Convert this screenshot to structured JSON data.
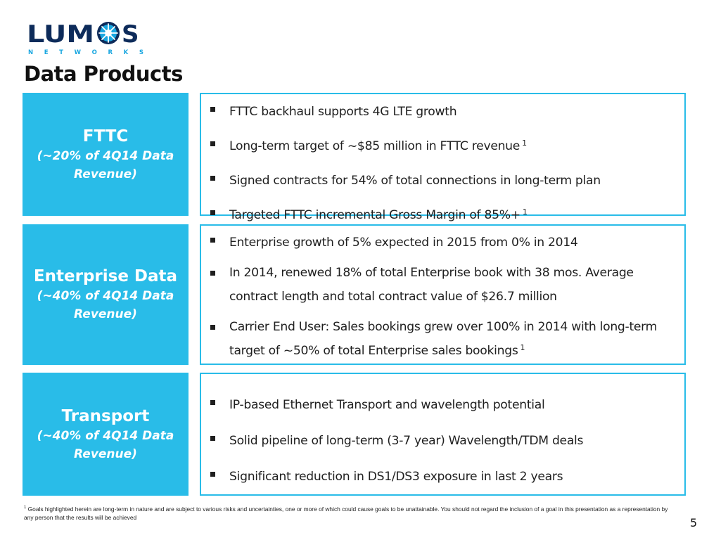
{
  "logo": {
    "word_left": "LUM",
    "word_right": "S",
    "tagline": "N E T W O R K S"
  },
  "title": "Data Products",
  "sections": [
    {
      "label": "FTTC",
      "sublabel": "(~20% of 4Q14 Data Revenue)",
      "bullets": [
        {
          "text": "FTTC backhaul supports 4G LTE growth",
          "note": ""
        },
        {
          "text": "Long-term target of ~$85 million in FTTC revenue",
          "note": "1"
        },
        {
          "text": "Signed contracts for 54% of total connections in long-term plan",
          "note": ""
        },
        {
          "text": "Targeted FTTC incremental Gross Margin of 85%+",
          "note": "1"
        }
      ]
    },
    {
      "label": "Enterprise Data",
      "sublabel": "(~40% of 4Q14 Data Revenue)",
      "bullets": [
        {
          "text": "Enterprise growth of 5% expected in 2015 from 0% in 2014",
          "note": ""
        },
        {
          "text": "In 2014, renewed 18% of total Enterprise book with 38 mos. Average contract length and total contract value of $26.7 million",
          "note": ""
        },
        {
          "text": "Carrier End User:  Sales bookings grew over 100% in 2014 with long-term target of ~50% of total Enterprise sales bookings",
          "note": "1"
        }
      ]
    },
    {
      "label": "Transport",
      "sublabel": "(~40% of 4Q14 Data Revenue)",
      "bullets": [
        {
          "text": "IP-based Ethernet Transport and wavelength potential",
          "note": ""
        },
        {
          "text": "Solid pipeline of long-term (3-7 year) Wavelength/TDM deals",
          "note": ""
        },
        {
          "text": "Significant reduction in DS1/DS3 exposure in last 2 years",
          "note": ""
        }
      ]
    }
  ],
  "footnote": {
    "marker": "1",
    "text": "Goals highlighted herein are long-term in nature and are subject to various risks and uncertainties, one or more of which could cause goals to be unattainable. You should not regard the inclusion of a goal in this presentation as a representation by any person that the results will be achieved"
  },
  "page_number": "5",
  "colors": {
    "accent": "#29bce8",
    "logo_navy": "#0d2b5a",
    "text": "#1f1f1f"
  },
  "icons": [
    "bullet-square-icon",
    "starburst-icon"
  ]
}
